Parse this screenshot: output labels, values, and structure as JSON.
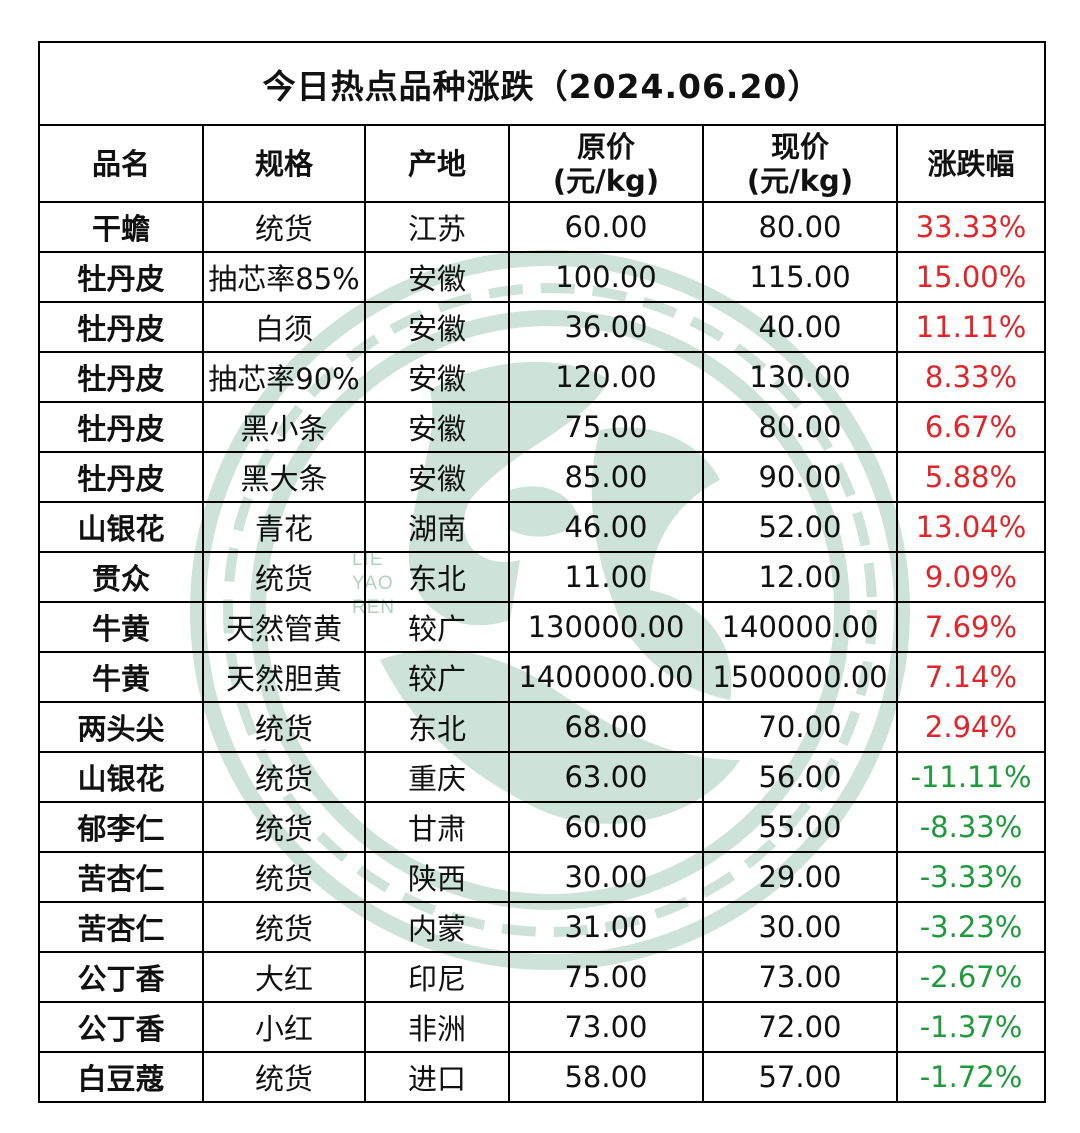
{
  "title": "今日热点品种涨跌（2024.06.20）",
  "headers": {
    "name": "品名",
    "spec": "规格",
    "origin": "产地",
    "old_price": "原价\n(元/kg)",
    "new_price": "现价\n(元/kg)",
    "change": "涨跌幅"
  },
  "watermark": {
    "letters": [
      "LIE",
      "YAO",
      "REN"
    ]
  },
  "colors": {
    "rise": "#e0262a",
    "fall": "#1f9a3c",
    "watermark": "#4f9b78"
  },
  "rows": [
    {
      "name": "干蟾",
      "spec": "统货",
      "origin": "江苏",
      "old_price": "60.00",
      "new_price": "80.00",
      "change": "33.33%",
      "trend": "up"
    },
    {
      "name": "牡丹皮",
      "spec": "抽芯率85%",
      "origin": "安徽",
      "old_price": "100.00",
      "new_price": "115.00",
      "change": "15.00%",
      "trend": "up"
    },
    {
      "name": "牡丹皮",
      "spec": "白须",
      "origin": "安徽",
      "old_price": "36.00",
      "new_price": "40.00",
      "change": "11.11%",
      "trend": "up"
    },
    {
      "name": "牡丹皮",
      "spec": "抽芯率90%",
      "origin": "安徽",
      "old_price": "120.00",
      "new_price": "130.00",
      "change": "8.33%",
      "trend": "up"
    },
    {
      "name": "牡丹皮",
      "spec": "黑小条",
      "origin": "安徽",
      "old_price": "75.00",
      "new_price": "80.00",
      "change": "6.67%",
      "trend": "up"
    },
    {
      "name": "牡丹皮",
      "spec": "黑大条",
      "origin": "安徽",
      "old_price": "85.00",
      "new_price": "90.00",
      "change": "5.88%",
      "trend": "up"
    },
    {
      "name": "山银花",
      "spec": "青花",
      "origin": "湖南",
      "old_price": "46.00",
      "new_price": "52.00",
      "change": "13.04%",
      "trend": "up"
    },
    {
      "name": "贯众",
      "spec": "统货",
      "origin": "东北",
      "old_price": "11.00",
      "new_price": "12.00",
      "change": "9.09%",
      "trend": "up"
    },
    {
      "name": "牛黄",
      "spec": "天然管黄",
      "origin": "较广",
      "old_price": "130000.00",
      "new_price": "140000.00",
      "change": "7.69%",
      "trend": "up"
    },
    {
      "name": "牛黄",
      "spec": "天然胆黄",
      "origin": "较广",
      "old_price": "1400000.00",
      "new_price": "1500000.00",
      "change": "7.14%",
      "trend": "up"
    },
    {
      "name": "两头尖",
      "spec": "统货",
      "origin": "东北",
      "old_price": "68.00",
      "new_price": "70.00",
      "change": "2.94%",
      "trend": "up"
    },
    {
      "name": "山银花",
      "spec": "统货",
      "origin": "重庆",
      "old_price": "63.00",
      "new_price": "56.00",
      "change": "-11.11%",
      "trend": "down"
    },
    {
      "name": "郁李仁",
      "spec": "统货",
      "origin": "甘肃",
      "old_price": "60.00",
      "new_price": "55.00",
      "change": "-8.33%",
      "trend": "down"
    },
    {
      "name": "苦杏仁",
      "spec": "统货",
      "origin": "陕西",
      "old_price": "30.00",
      "new_price": "29.00",
      "change": "-3.33%",
      "trend": "down"
    },
    {
      "name": "苦杏仁",
      "spec": "统货",
      "origin": "内蒙",
      "old_price": "31.00",
      "new_price": "30.00",
      "change": "-3.23%",
      "trend": "down"
    },
    {
      "name": "公丁香",
      "spec": "大红",
      "origin": "印尼",
      "old_price": "75.00",
      "new_price": "73.00",
      "change": "-2.67%",
      "trend": "down"
    },
    {
      "name": "公丁香",
      "spec": "小红",
      "origin": "非洲",
      "old_price": "73.00",
      "new_price": "72.00",
      "change": "-1.37%",
      "trend": "down"
    },
    {
      "name": "白豆蔻",
      "spec": "统货",
      "origin": "进口",
      "old_price": "58.00",
      "new_price": "57.00",
      "change": "-1.72%",
      "trend": "down"
    }
  ]
}
